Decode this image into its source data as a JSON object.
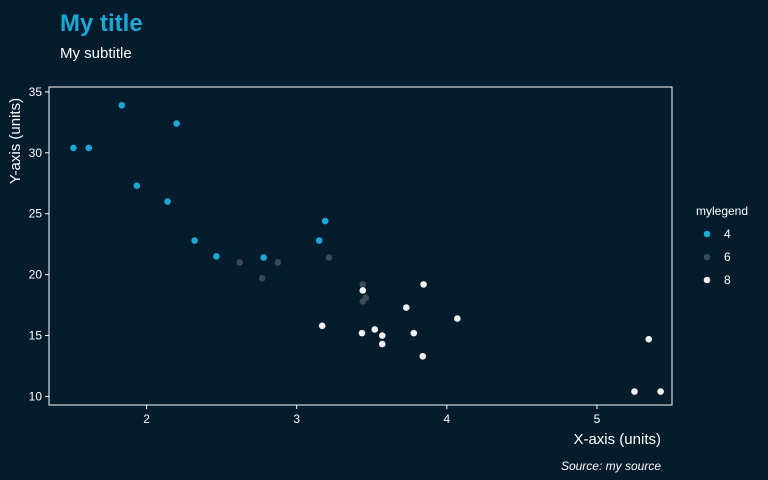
{
  "chart_data": {
    "type": "scatter",
    "title": "My title",
    "subtitle": "My subtitle",
    "xlabel": "X-axis (units)",
    "ylabel": "Y-axis (units)",
    "caption": "Source: my source",
    "xlim": [
      1.35,
      5.5
    ],
    "ylim": [
      9.3,
      35.4
    ],
    "xticks": [
      2,
      3,
      4,
      5
    ],
    "yticks": [
      10,
      15,
      20,
      25,
      30,
      35
    ],
    "grid": false,
    "legend": {
      "title": "mylegend",
      "position": "right"
    },
    "colors": {
      "background": "#041c2c",
      "title": "#1ba7d8",
      "text": "#ffffff",
      "axis_line": "#ffffff"
    },
    "series": [
      {
        "name": "4",
        "color": "#1ba7d8",
        "points": [
          [
            2.32,
            22.8
          ],
          [
            3.19,
            24.4
          ],
          [
            3.15,
            22.8
          ],
          [
            2.2,
            32.4
          ],
          [
            1.615,
            30.4
          ],
          [
            1.835,
            33.9
          ],
          [
            2.465,
            21.5
          ],
          [
            1.935,
            27.3
          ],
          [
            2.14,
            26.0
          ],
          [
            1.513,
            30.4
          ],
          [
            2.78,
            21.4
          ]
        ]
      },
      {
        "name": "6",
        "color": "#3c4a55",
        "points": [
          [
            2.62,
            21.0
          ],
          [
            2.875,
            21.0
          ],
          [
            3.215,
            21.4
          ],
          [
            3.46,
            18.1
          ],
          [
            3.44,
            19.2
          ],
          [
            3.44,
            17.8
          ],
          [
            2.77,
            19.7
          ]
        ]
      },
      {
        "name": "8",
        "color": "#f2f2f2",
        "points": [
          [
            3.44,
            18.7
          ],
          [
            3.57,
            14.3
          ],
          [
            4.07,
            16.4
          ],
          [
            3.73,
            17.3
          ],
          [
            3.78,
            15.2
          ],
          [
            5.25,
            10.4
          ],
          [
            5.424,
            10.4
          ],
          [
            5.345,
            14.7
          ],
          [
            3.52,
            15.5
          ],
          [
            3.435,
            15.2
          ],
          [
            3.84,
            13.3
          ],
          [
            3.845,
            19.2
          ],
          [
            3.17,
            15.8
          ],
          [
            3.57,
            15.0
          ]
        ]
      }
    ]
  }
}
